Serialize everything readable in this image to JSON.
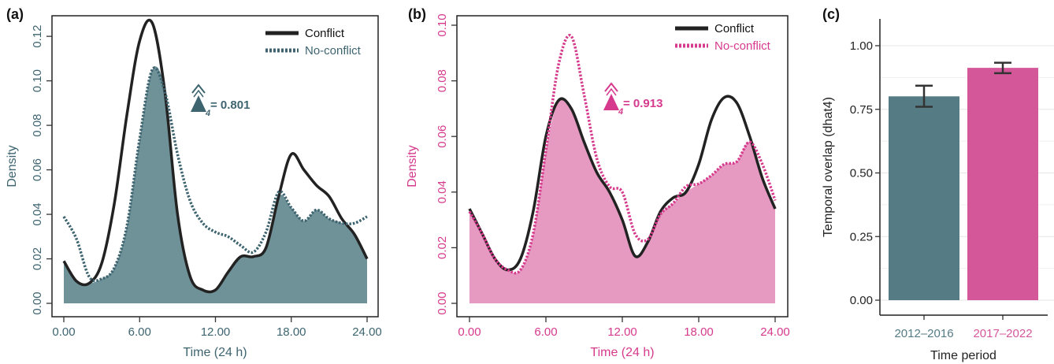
{
  "chart_data": [
    {
      "type": "area",
      "panel_label": "(a)",
      "xlabel": "Time (24 h)",
      "ylabel": "Density",
      "xlim": [
        0,
        24
      ],
      "ylim": [
        0,
        0.125
      ],
      "x_ticks": [
        0,
        6,
        12,
        18,
        24
      ],
      "x_tick_labels": [
        "0.00",
        "6.00",
        "12.00",
        "18.00",
        "24.00"
      ],
      "y_ticks": [
        0,
        0.02,
        0.04,
        0.06,
        0.08,
        0.1,
        0.12
      ],
      "y_tick_labels": [
        "0.00",
        "0.02",
        "0.04",
        "0.06",
        "0.08",
        "0.10",
        "0.12"
      ],
      "legend_position": "top-right",
      "overlap_label": "= 0.801",
      "overlap_subscript": "4",
      "colors": {
        "conflict": "#222222",
        "no_conflict": "#3e6470",
        "overlap_fill": "#6f9198",
        "accent": "#3e6470"
      },
      "series": [
        {
          "name": "Conflict",
          "style": "solid",
          "x": [
            0,
            1,
            2,
            3,
            4,
            5,
            6,
            7,
            8,
            9,
            10,
            11,
            12,
            13,
            14,
            15,
            16,
            17,
            18,
            19,
            20,
            21,
            22,
            23,
            24
          ],
          "y": [
            0.019,
            0.01,
            0.009,
            0.018,
            0.045,
            0.085,
            0.118,
            0.126,
            0.095,
            0.04,
            0.012,
            0.006,
            0.006,
            0.014,
            0.021,
            0.021,
            0.025,
            0.048,
            0.067,
            0.06,
            0.053,
            0.048,
            0.038,
            0.031,
            0.02
          ]
        },
        {
          "name": "No-conflict",
          "style": "dotted",
          "x": [
            0,
            1,
            2,
            3,
            4,
            5,
            6,
            7,
            8,
            9,
            10,
            11,
            12,
            13,
            14,
            15,
            16,
            17,
            18,
            19,
            20,
            21,
            22,
            23,
            24
          ],
          "y": [
            0.039,
            0.029,
            0.012,
            0.011,
            0.016,
            0.035,
            0.074,
            0.105,
            0.095,
            0.067,
            0.046,
            0.036,
            0.032,
            0.03,
            0.026,
            0.023,
            0.032,
            0.05,
            0.043,
            0.037,
            0.042,
            0.038,
            0.036,
            0.036,
            0.039
          ]
        }
      ]
    },
    {
      "type": "area",
      "panel_label": "(b)",
      "xlabel": "Time (24 h)",
      "ylabel": "Density",
      "xlim": [
        0,
        24
      ],
      "ylim": [
        0,
        0.1
      ],
      "x_ticks": [
        0,
        6,
        12,
        18,
        24
      ],
      "x_tick_labels": [
        "0.00",
        "6.00",
        "12.00",
        "18.00",
        "24.00"
      ],
      "y_ticks": [
        0,
        0.02,
        0.04,
        0.06,
        0.08,
        0.1
      ],
      "y_tick_labels": [
        "0.00",
        "0.02",
        "0.04",
        "0.06",
        "0.08",
        "0.10"
      ],
      "legend_position": "top-right",
      "overlap_label": "= 0.913",
      "overlap_subscript": "4",
      "colors": {
        "conflict": "#222222",
        "no_conflict": "#d63a8c",
        "overlap_fill": "#e69ac2",
        "accent": "#d63a8c"
      },
      "series": [
        {
          "name": "Conflict",
          "style": "solid",
          "x": [
            0,
            1,
            2,
            3,
            4,
            5,
            6,
            7,
            8,
            9,
            10,
            11,
            12,
            13,
            14,
            15,
            16,
            17,
            18,
            19,
            20,
            21,
            22,
            23,
            24
          ],
          "y": [
            0.034,
            0.025,
            0.016,
            0.012,
            0.016,
            0.033,
            0.06,
            0.073,
            0.07,
            0.058,
            0.047,
            0.04,
            0.03,
            0.017,
            0.022,
            0.033,
            0.038,
            0.04,
            0.05,
            0.066,
            0.074,
            0.072,
            0.06,
            0.045,
            0.034
          ]
        },
        {
          "name": "No-conflict",
          "style": "dotted",
          "x": [
            0,
            1,
            2,
            3,
            4,
            5,
            6,
            7,
            8,
            9,
            10,
            11,
            12,
            13,
            14,
            15,
            16,
            17,
            18,
            19,
            20,
            21,
            22,
            23,
            24
          ],
          "y": [
            0.033,
            0.025,
            0.016,
            0.012,
            0.012,
            0.025,
            0.055,
            0.086,
            0.096,
            0.075,
            0.052,
            0.042,
            0.04,
            0.025,
            0.023,
            0.032,
            0.036,
            0.042,
            0.043,
            0.046,
            0.05,
            0.051,
            0.058,
            0.05,
            0.037
          ]
        }
      ]
    },
    {
      "type": "bar",
      "panel_label": "(c)",
      "xlabel": "Time period",
      "ylabel": "Temporal overlap (dhat4)",
      "ylim": [
        0,
        1.1
      ],
      "y_ticks": [
        0,
        0.25,
        0.5,
        0.75,
        1.0
      ],
      "y_tick_labels": [
        "0.00",
        "0.25",
        "0.50",
        "0.75",
        "1.00"
      ],
      "grid": true,
      "categories": [
        "2012–2016",
        "2017–2022"
      ],
      "values": [
        0.801,
        0.913
      ],
      "errors_low": [
        0.76,
        0.892
      ],
      "errors_high": [
        0.843,
        0.933
      ],
      "colors": [
        "#557c85",
        "#d4579a"
      ]
    }
  ]
}
